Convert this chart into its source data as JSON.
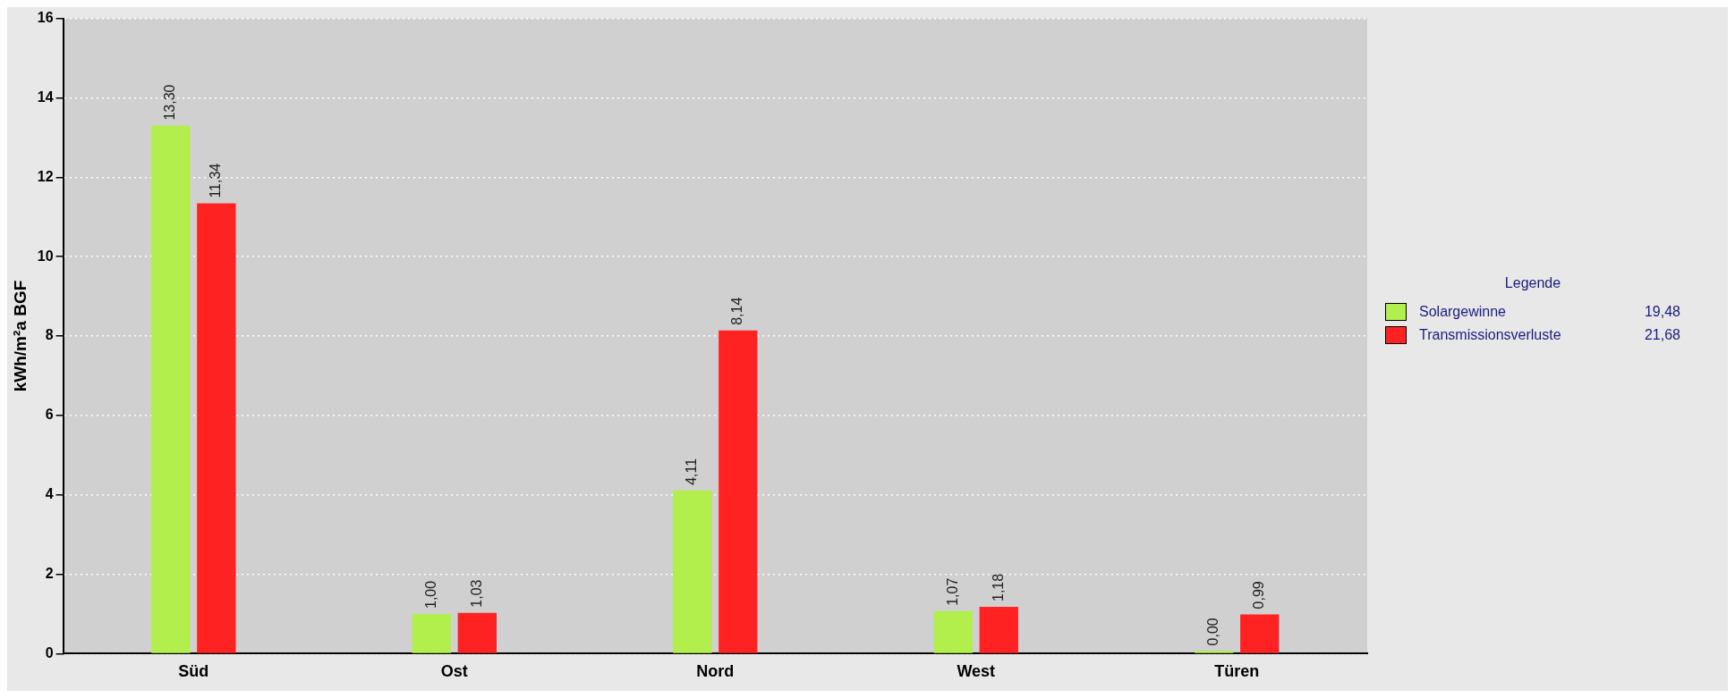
{
  "chart_data": {
    "type": "bar",
    "ylabel": "kWh/m²a BGF",
    "legend_title": "Legende",
    "legend": "right",
    "grid": "y",
    "categories": [
      "Süd",
      "Ost",
      "Nord",
      "West",
      "Türen"
    ],
    "series": [
      {
        "name": "Solargewinne",
        "color": "#b2ee4c",
        "values": [
          13.3,
          1.0,
          4.11,
          1.07,
          0.0
        ],
        "value_labels": [
          "13,30",
          "1,00",
          "4,11",
          "1,07",
          "0,00"
        ]
      },
      {
        "name": "Transmissionsverluste",
        "color": "#ff2222",
        "values": [
          11.34,
          1.03,
          8.14,
          1.18,
          0.99
        ],
        "value_labels": [
          "11,34",
          "1,03",
          "8,14",
          "1,18",
          "0,99"
        ]
      }
    ],
    "annotations": [
      "19,48",
      "21,68"
    ],
    "ylim": [
      0,
      16
    ],
    "yticks": [
      0,
      2,
      4,
      6,
      8,
      10,
      12,
      14,
      16
    ]
  }
}
